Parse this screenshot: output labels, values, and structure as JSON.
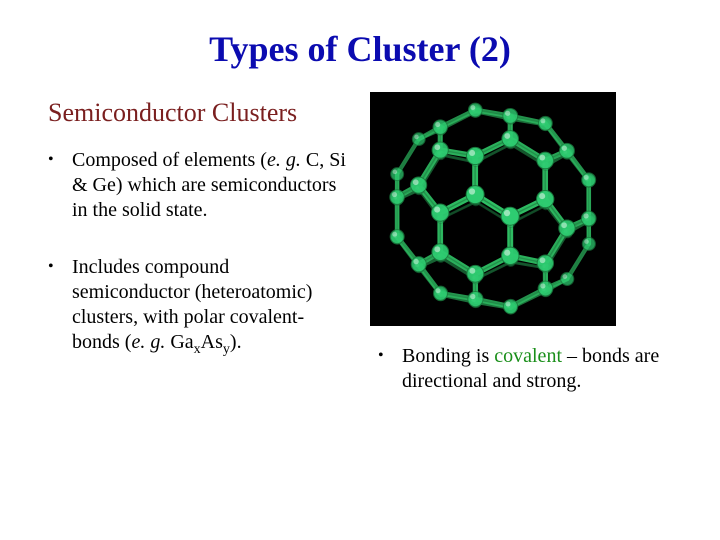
{
  "title": {
    "text": "Types of Cluster (2)",
    "color": "#0b0bb0"
  },
  "subtitle": {
    "text": "Semiconductor Clusters",
    "color": "#7a1f1f"
  },
  "bullets_left": [
    {
      "pre": "Composed of elements (",
      "eg": "e. g.",
      "post": " C, Si & Ge) which are semiconductors in the solid state."
    },
    {
      "pre": "Includes compound semiconductor (heteroatomic) clusters, with polar covalent-bonds (",
      "eg": "e. g.",
      "formula": "GaxAsy",
      "post": ")."
    }
  ],
  "bullet_right": {
    "pre": "Bonding is ",
    "highlight": "covalent",
    "highlight_color": "#1a8f1a",
    "post": " – bonds are directional and strong."
  },
  "molecule": {
    "node_color": "#2ecc71",
    "node_stroke": "#1a7a3e",
    "edge_color": "#2fbf64",
    "edge_stroke": "#1a7a3e",
    "background": "#000000"
  }
}
